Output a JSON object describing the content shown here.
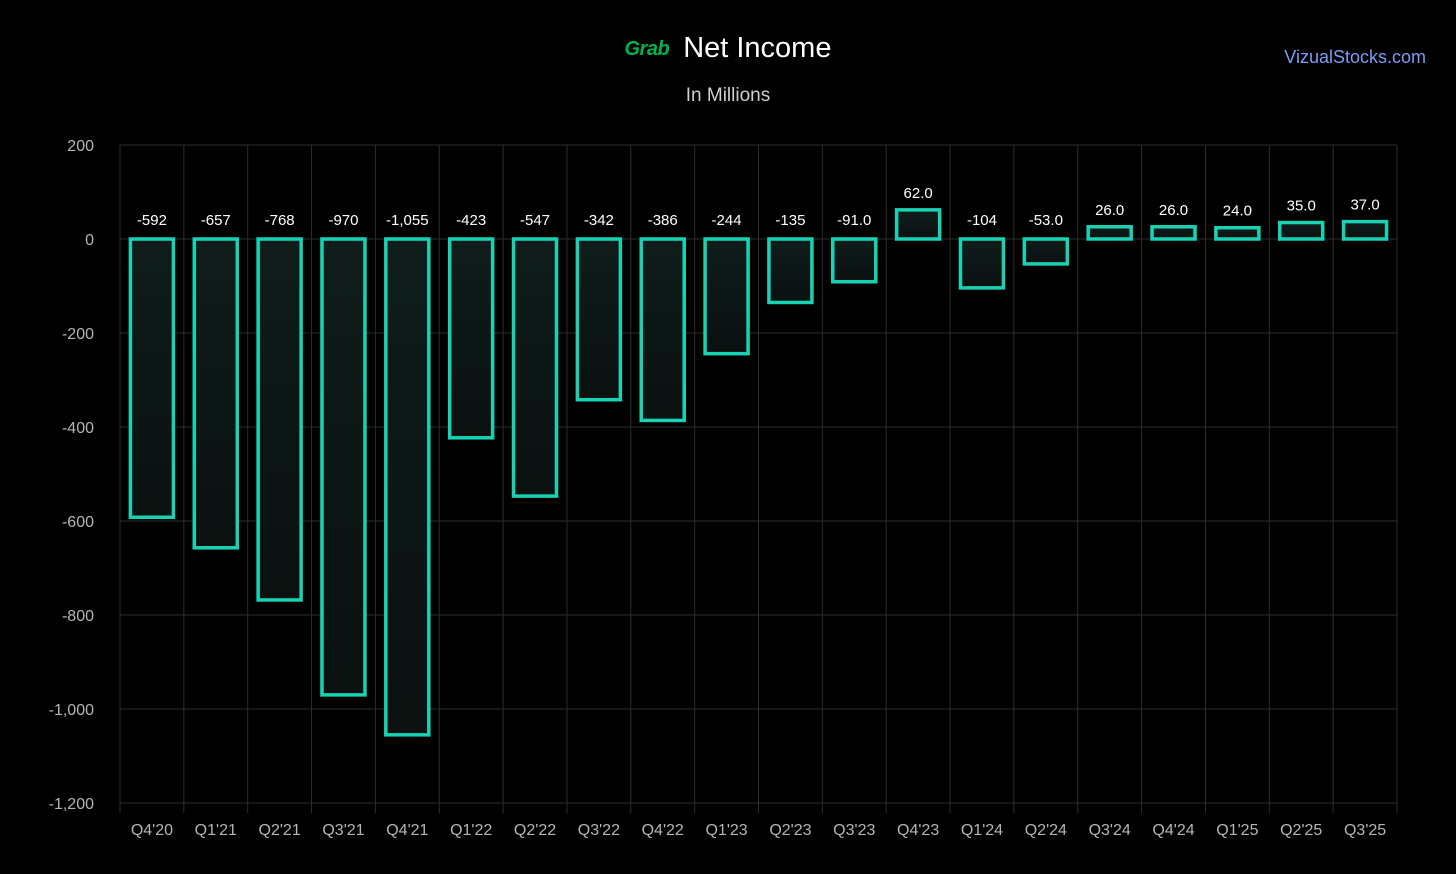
{
  "header": {
    "logo_text": "Grab",
    "title": "Net Income",
    "subtitle": "In Millions",
    "site": "VizualStocks.com"
  },
  "colors": {
    "background": "#000000",
    "bar_stroke": "#17d3b4",
    "bar_fill": "#0f1d1b",
    "grid": "#2e2e2e",
    "logo": "#00b14f",
    "site_link": "#7c9cf5",
    "axis_text": "#b5b5b5",
    "label_text": "#ffffff"
  },
  "chart_data": {
    "type": "bar",
    "title": "Net Income",
    "subtitle": "In Millions",
    "xlabel": "",
    "ylabel": "",
    "ylim": [
      -1200,
      200
    ],
    "yticks": [
      200,
      0,
      -200,
      -400,
      -600,
      -800,
      -1000,
      -1200
    ],
    "ytick_labels": [
      "200",
      "0",
      "-200",
      "-400",
      "-600",
      "-800",
      "-1,000",
      "-1,200"
    ],
    "grid": true,
    "categories": [
      "Q4'20",
      "Q1'21",
      "Q2'21",
      "Q3'21",
      "Q4'21",
      "Q1'22",
      "Q2'22",
      "Q3'22",
      "Q4'22",
      "Q1'23",
      "Q2'23",
      "Q3'23",
      "Q4'23",
      "Q1'24",
      "Q2'24",
      "Q3'24",
      "Q4'24",
      "Q1'25",
      "Q2'25",
      "Q3'25"
    ],
    "values": [
      -592,
      -657,
      -768,
      -970,
      -1055,
      -423,
      -547,
      -342,
      -386,
      -244,
      -135,
      -91,
      62,
      -104,
      -53,
      26,
      26,
      24,
      35,
      37
    ],
    "value_labels": [
      "-592",
      "-657",
      "-768",
      "-970",
      "-1,055",
      "-423",
      "-547",
      "-342",
      "-386",
      "-244",
      "-135",
      "-91.0",
      "62.0",
      "-104",
      "-53.0",
      "26.0",
      "26.0",
      "24.0",
      "35.0",
      "37.0"
    ]
  }
}
